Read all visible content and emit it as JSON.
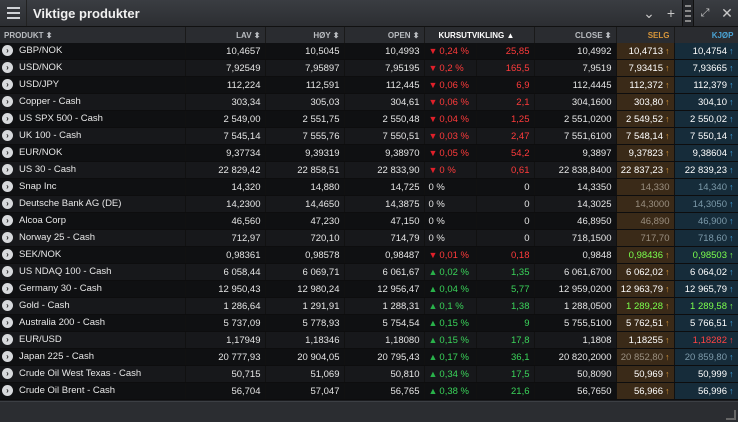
{
  "window": {
    "title": "Viktige produkter"
  },
  "columns": {
    "produkt": "PRODUKT",
    "lav": "LAV",
    "hoy": "HØY",
    "open": "OPEN",
    "kursutvikling": "KURSUTVIKLING",
    "close": "CLOSE",
    "selg": "SELG",
    "kjop": "KJØP"
  },
  "rows": [
    {
      "name": "GBP/NOK",
      "lav": "10,4657",
      "hoy": "10,5045",
      "open": "10,4993",
      "pct": "0,24 %",
      "abs": "25,85",
      "dir": "down",
      "close": "10,4992",
      "selg": "10,4713",
      "kjop": "10,4754"
    },
    {
      "name": "USD/NOK",
      "lav": "7,92549",
      "hoy": "7,95897",
      "open": "7,95195",
      "pct": "0,2 %",
      "abs": "165,5",
      "dir": "down",
      "close": "7,9519",
      "selg": "7,93415",
      "kjop": "7,93665"
    },
    {
      "name": "USD/JPY",
      "lav": "112,224",
      "hoy": "112,591",
      "open": "112,445",
      "pct": "0,06 %",
      "abs": "6,9",
      "dir": "down",
      "close": "112,4445",
      "selg": "112,372",
      "kjop": "112,379"
    },
    {
      "name": "Copper - Cash",
      "lav": "303,34",
      "hoy": "305,03",
      "open": "304,61",
      "pct": "0,06 %",
      "abs": "2,1",
      "dir": "down",
      "close": "304,1600",
      "selg": "303,80",
      "kjop": "304,10"
    },
    {
      "name": "US SPX 500 - Cash",
      "lav": "2 549,00",
      "hoy": "2 551,75",
      "open": "2 550,48",
      "pct": "0,04 %",
      "abs": "1,25",
      "dir": "down",
      "close": "2 551,0200",
      "selg": "2 549,52",
      "kjop": "2 550,02"
    },
    {
      "name": "UK 100 - Cash",
      "lav": "7 545,14",
      "hoy": "7 555,76",
      "open": "7 550,51",
      "pct": "0,03 %",
      "abs": "2,47",
      "dir": "down",
      "close": "7 551,6100",
      "selg": "7 548,14",
      "kjop": "7 550,14"
    },
    {
      "name": "EUR/NOK",
      "lav": "9,37734",
      "hoy": "9,39319",
      "open": "9,38970",
      "pct": "0,05 %",
      "abs": "54,2",
      "dir": "down",
      "close": "9,3897",
      "selg": "9,37823",
      "kjop": "9,38604"
    },
    {
      "name": "US 30 - Cash",
      "lav": "22 829,42",
      "hoy": "22 858,51",
      "open": "22 833,90",
      "pct": "0 %",
      "abs": "0,61",
      "dir": "down",
      "close": "22 838,8400",
      "selg": "22 837,23",
      "kjop": "22 839,23"
    },
    {
      "name": "Snap Inc",
      "lav": "14,320",
      "hoy": "14,880",
      "open": "14,725",
      "pct": "0 %",
      "abs": "0",
      "dir": "none",
      "close": "14,3350",
      "selg": "14,330",
      "kjop": "14,340"
    },
    {
      "name": "Deutsche Bank AG (DE)",
      "lav": "14,2300",
      "hoy": "14,4650",
      "open": "14,3875",
      "pct": "0 %",
      "abs": "0",
      "dir": "none",
      "close": "14,3025",
      "selg": "14,3000",
      "kjop": "14,3050"
    },
    {
      "name": "Alcoa Corp",
      "lav": "46,560",
      "hoy": "47,230",
      "open": "47,150",
      "pct": "0 %",
      "abs": "0",
      "dir": "none",
      "close": "46,8950",
      "selg": "46,890",
      "kjop": "46,900"
    },
    {
      "name": "Norway 25 - Cash",
      "lav": "712,97",
      "hoy": "720,10",
      "open": "714,79",
      "pct": "0 %",
      "abs": "0",
      "dir": "none",
      "close": "718,1500",
      "selg": "717,70",
      "kjop": "718,60"
    },
    {
      "name": "SEK/NOK",
      "lav": "0,98361",
      "hoy": "0,98578",
      "open": "0,98487",
      "pct": "0,01 %",
      "abs": "0,18",
      "dir": "down",
      "close": "0,9848",
      "selg": "0,98436",
      "kjop": "0,98503"
    },
    {
      "name": "US NDAQ 100 - Cash",
      "lav": "6 058,44",
      "hoy": "6 069,71",
      "open": "6 061,67",
      "pct": "0,02 %",
      "abs": "1,35",
      "dir": "up",
      "close": "6 061,6700",
      "selg": "6 062,02",
      "kjop": "6 064,02"
    },
    {
      "name": "Germany 30 - Cash",
      "lav": "12 950,43",
      "hoy": "12 980,24",
      "open": "12 956,47",
      "pct": "0,04 %",
      "abs": "5,77",
      "dir": "up",
      "close": "12 959,0200",
      "selg": "12 963,79",
      "kjop": "12 965,79"
    },
    {
      "name": "Gold - Cash",
      "lav": "1 286,64",
      "hoy": "1 291,91",
      "open": "1 288,31",
      "pct": "0,1 %",
      "abs": "1,38",
      "dir": "up",
      "close": "1 288,0500",
      "selg": "1 289,28",
      "kjop": "1 289,58"
    },
    {
      "name": "Australia 200 - Cash",
      "lav": "5 737,09",
      "hoy": "5 778,93",
      "open": "5 754,54",
      "pct": "0,15 %",
      "abs": "9",
      "dir": "up",
      "close": "5 755,5100",
      "selg": "5 762,51",
      "kjop": "5 766,51"
    },
    {
      "name": "EUR/USD",
      "lav": "1,17949",
      "hoy": "1,18346",
      "open": "1,18080",
      "pct": "0,15 %",
      "abs": "17,8",
      "dir": "up",
      "close": "1,1808",
      "selg": "1,18255",
      "kjop": "1,18282"
    },
    {
      "name": "Japan 225 - Cash",
      "lav": "20 777,93",
      "hoy": "20 904,05",
      "open": "20 795,43",
      "pct": "0,17 %",
      "abs": "36,1",
      "dir": "up",
      "close": "20 820,2000",
      "selg": "20 852,80",
      "kjop": "20 859,80"
    },
    {
      "name": "Crude Oil West Texas - Cash",
      "lav": "50,715",
      "hoy": "51,069",
      "open": "50,810",
      "pct": "0,34 %",
      "abs": "17,5",
      "dir": "up",
      "close": "50,8090",
      "selg": "50,969",
      "kjop": "50,999"
    },
    {
      "name": "Crude Oil Brent - Cash",
      "lav": "56,704",
      "hoy": "57,047",
      "open": "56,765",
      "pct": "0,38 %",
      "abs": "21,6",
      "dir": "up",
      "close": "56,7650",
      "selg": "56,966",
      "kjop": "56,996"
    }
  ],
  "style": {
    "selg_classes": [
      "",
      "",
      "",
      "",
      "",
      "",
      "",
      "",
      "selg-dim",
      "selg-dim",
      "selg-dim",
      "selg-dim",
      "selg-green",
      "",
      "",
      "selg-green",
      "",
      "",
      "selg-dim",
      "",
      ""
    ],
    "kjop_classes": [
      "",
      "",
      "",
      "",
      "",
      "",
      "",
      "",
      "kjop-dim",
      "kjop-dim",
      "kjop-dim",
      "kjop-dim",
      "kjop-green",
      "",
      "",
      "kjop-green",
      "",
      "kjop-red",
      "kjop-dim",
      "",
      ""
    ],
    "kjop_ticks": [
      "up",
      "up",
      "up",
      "up",
      "up",
      "up",
      "up",
      "up",
      "up",
      "up",
      "up",
      "up",
      "green",
      "up",
      "up",
      "green",
      "up",
      "red",
      "up",
      "up",
      "up"
    ]
  }
}
